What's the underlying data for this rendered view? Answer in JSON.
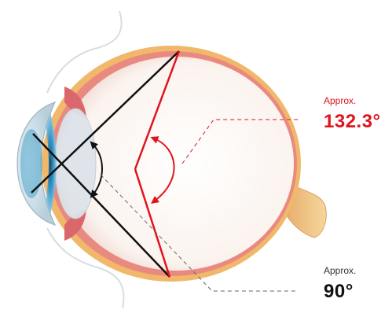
{
  "annotations": {
    "wide_angle": {
      "prefix": "Approx.",
      "value": "132.3°"
    },
    "narrow_angle": {
      "prefix": "Approx.",
      "value": "90°"
    }
  },
  "colors": {
    "wide_angle": "#e0141e",
    "narrow_angle": "#111111",
    "sclera": "#f1b86b",
    "choroid": "#e98a80",
    "vitreous": "#ffffff",
    "iris": "#4aa3c9",
    "lens": "#dde4ea",
    "optic_nerve": "#f2c98a"
  }
}
